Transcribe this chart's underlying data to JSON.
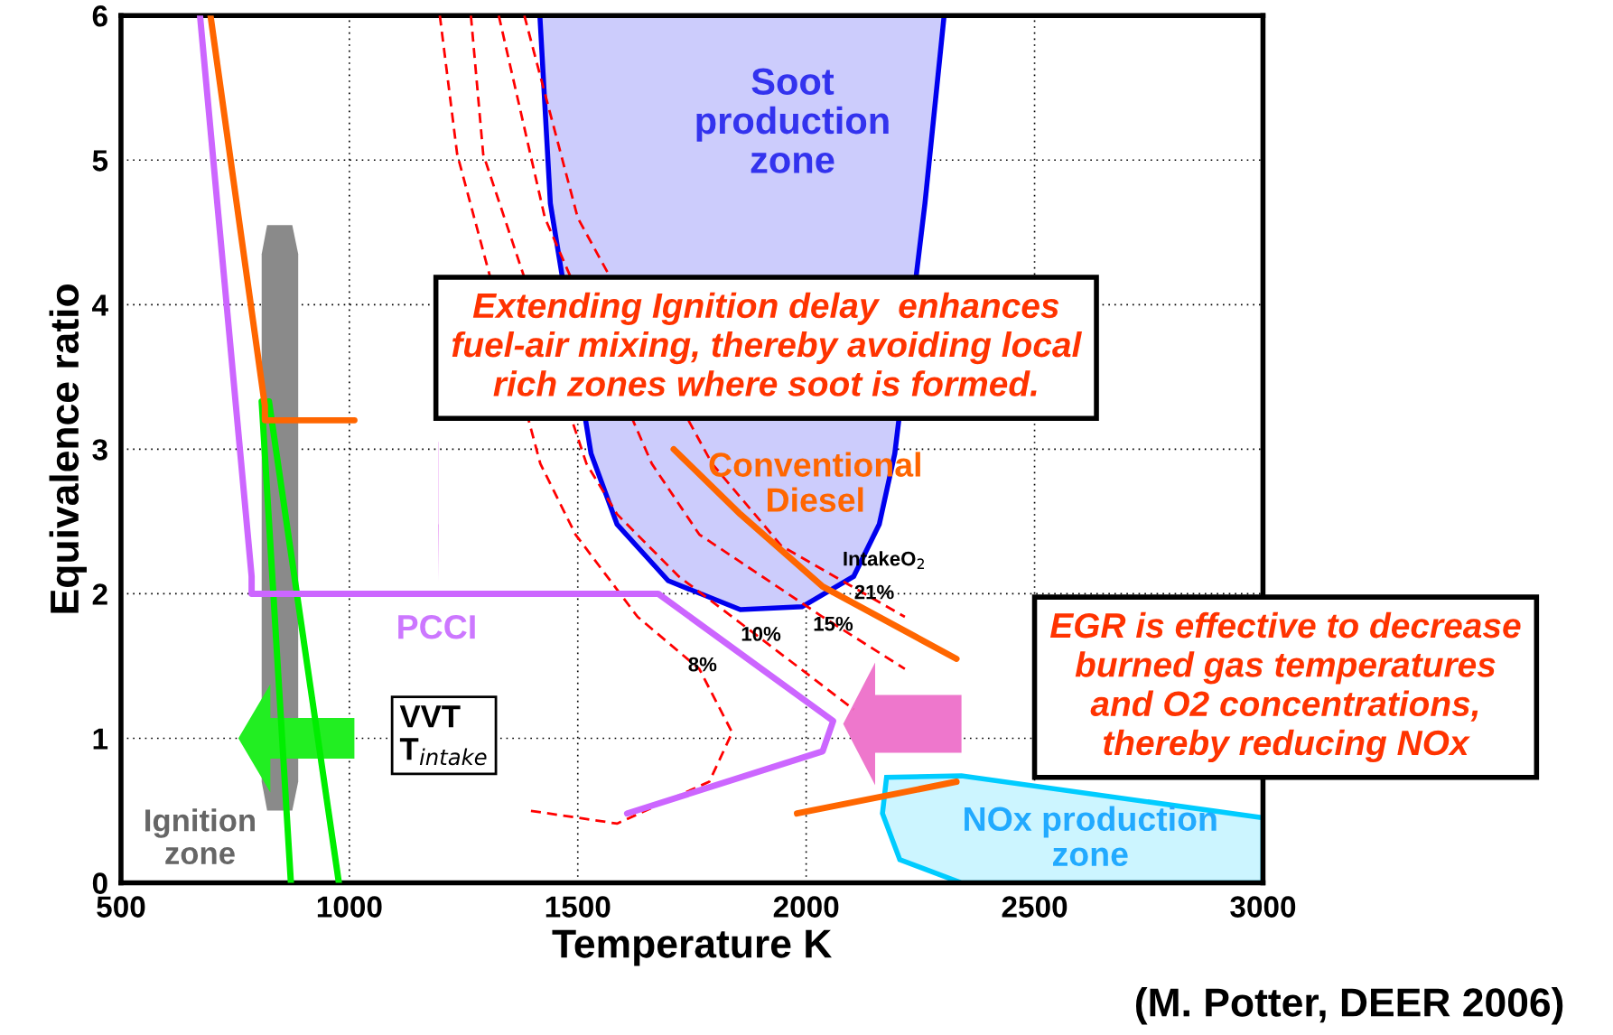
{
  "chart_data": {
    "type": "line",
    "xlabel": "Temperature K",
    "ylabel": "Equivalence ratio",
    "xlim": [
      500,
      3000
    ],
    "ylim": [
      0,
      6
    ],
    "xticks": [
      500,
      1000,
      1500,
      2000,
      2500,
      3000
    ],
    "yticks": [
      0,
      1,
      2,
      3,
      4,
      5,
      6
    ],
    "grid": true,
    "series": [
      {
        "type": "area",
        "color": "#0000ee",
        "x": [
          1417,
          1440,
          1529,
          1586,
          1698,
          1856,
          1991,
          2104,
          2160,
          2194,
          2260,
          2302
        ],
        "values": [
          6,
          4.7,
          2.97,
          2.48,
          2.09,
          1.89,
          1.91,
          2.12,
          2.48,
          2.97,
          4.7,
          6
        ]
      },
      {
        "type": "area",
        "color": "#00ccff",
        "x": [
          2340,
          2205,
          2167,
          2176,
          2340,
          3000,
          3000
        ],
        "values": [
          0,
          0.16,
          0.48,
          0.73,
          0.74,
          0.45,
          0
        ]
      },
      {
        "color": "#ff0000",
        "line_style": "dashed",
        "x": [
          1198,
          1236,
          1418,
          1495,
          1631,
          1766,
          1838,
          1788,
          1586,
          1394
        ],
        "values": [
          6,
          5.04,
          2.9,
          2.41,
          1.84,
          1.48,
          1.04,
          0.7,
          0.41,
          0.5
        ]
      },
      {
        "color": "#ff0000",
        "line_style": "dashed",
        "x": [
          1266,
          1293,
          1519,
          1586,
          1721,
          1901,
          2104
        ],
        "values": [
          6,
          5.04,
          2.9,
          2.55,
          2.12,
          1.69,
          1.2
        ]
      },
      {
        "color": "#ff0000",
        "line_style": "dashed",
        "x": [
          1327,
          1428,
          1662,
          1766,
          2036,
          2216
        ],
        "values": [
          6,
          4.6,
          2.9,
          2.41,
          1.84,
          1.48
        ]
      },
      {
        "color": "#ff0000",
        "line_style": "dashed",
        "x": [
          1383,
          1500,
          1794,
          1946,
          2216
        ],
        "values": [
          6,
          4.6,
          2.9,
          2.33,
          1.84
        ]
      },
      {
        "color": "#00ee00",
        "x": [
          808,
          872
        ],
        "values": [
          3.33,
          0
        ]
      },
      {
        "color": "#00ee00",
        "x": [
          824,
          977
        ],
        "values": [
          3.33,
          0
        ]
      },
      {
        "color": "#ff6600",
        "x": [
          696,
          815,
          815,
          1011,
          null,
          1710,
          1856,
          2036,
          2329
        ],
        "values": [
          6,
          3.3,
          3.2,
          3.2,
          null,
          3.0,
          2.55,
          2.05,
          1.55
        ]
      },
      {
        "color": "#ff6600",
        "x": [
          2329,
          1980
        ],
        "values": [
          0.7,
          0.48
        ]
      },
      {
        "color": "#cc66ff",
        "x": [
          673,
          786,
          786,
          1676,
          2059,
          2036,
          1608
        ],
        "values": [
          6,
          2.12,
          2.0,
          2.0,
          1.12,
          0.91,
          0.48
        ]
      }
    ],
    "annotations": [
      "Soot\nproduction\nzone",
      "Conventional\nDiesel",
      "PCCI",
      "Ignition\nzone",
      "NOx production\nzone",
      "VVT\nT$_{intake}$",
      "IntakeO$_{2}$",
      "21%",
      "15%",
      "10%",
      "8%",
      "Extending Ignition delay  enhances\nfuel-air mixing, thereby avoiding local\nrich zones where soot is formed.",
      "EGR is effective to decrease\nburned gas temperatures\nand O2 concentrations,\nthereby reducing NOx",
      "(M. Potter, DEER 2006)"
    ]
  }
}
